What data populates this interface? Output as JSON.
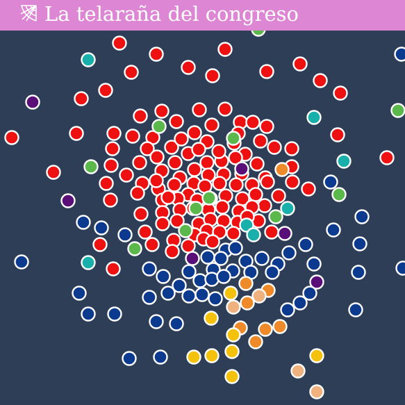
{
  "header": {
    "title": "La telaraña del congreso",
    "icon": "spiderweb-icon",
    "background": "#dc86d4"
  },
  "colors": {
    "background": "#2e3e57",
    "red": "#ee1111",
    "navy": "#0c3a8e",
    "green": "#5bb84a",
    "teal": "#19b0ac",
    "purple": "#5a0e78",
    "orange": "#ef8a2a",
    "peach": "#efb27e",
    "yellow": "#f4c20d"
  },
  "node_colors": {
    "red": 177,
    "navy": 62,
    "green": 15,
    "teal": 11,
    "purple": 8,
    "orange": 9,
    "peach": 5,
    "yellow": 9
  }
}
